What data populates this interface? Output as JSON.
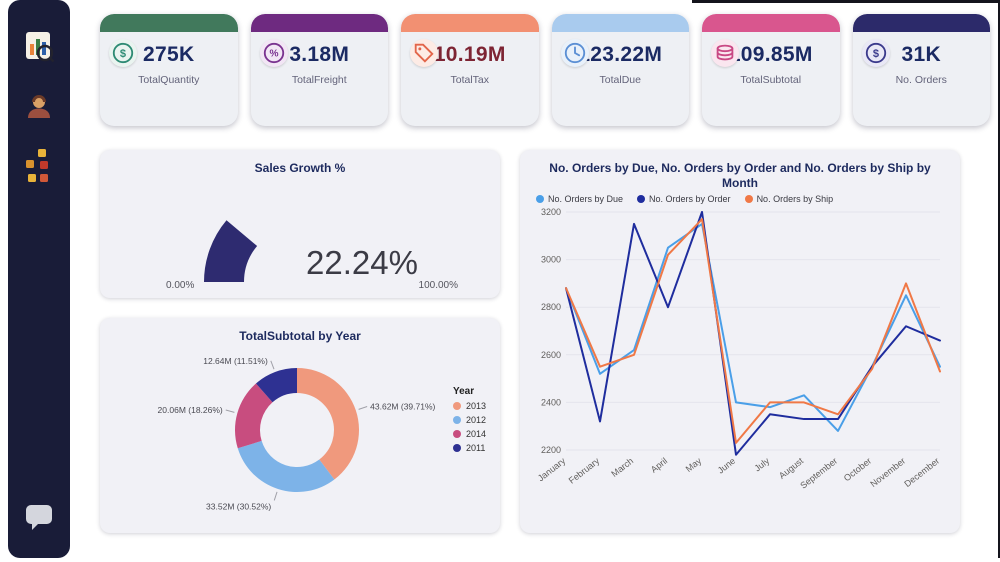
{
  "sidebar": {
    "icon_names": [
      "app-logo-icon",
      "user-profile-icon",
      "apps-grid-icon",
      "chat-bubble-icon"
    ]
  },
  "kpi_cards": [
    {
      "value": "275K",
      "label": "TotalQuantity",
      "accent": "#41795c",
      "icon": "dollar",
      "icon_color": "#2e8b74",
      "icon_bg": "#eaf4f0",
      "value_color": "#1b2a63"
    },
    {
      "value": "3.18M",
      "label": "TotalFreight",
      "accent": "#6e2a80",
      "icon": "percent",
      "icon_color": "#7a3390",
      "icon_bg": "#f2e6f5",
      "value_color": "#1b2a63"
    },
    {
      "value": "10.19M",
      "label": "TotalTax",
      "accent": "#f29072",
      "icon": "tag",
      "icon_color": "#e2654a",
      "icon_bg": "#fdebe5",
      "value_color": "#7d2433"
    },
    {
      "value": "123.22M",
      "label": "TotalDue",
      "accent": "#a9cbee",
      "icon": "clock",
      "icon_color": "#5b8fd4",
      "icon_bg": "#e9f1fa",
      "value_color": "#1b2a63"
    },
    {
      "value": "109.85M",
      "label": "TotalSubtotal",
      "accent": "#d9568e",
      "icon": "coins",
      "icon_color": "#c94884",
      "icon_bg": "#fae6ef",
      "value_color": "#1b2a63"
    },
    {
      "value": "31K",
      "label": "No. Orders",
      "accent": "#2c2a6a",
      "icon": "dollar",
      "icon_color": "#3b3a8c",
      "icon_bg": "#e9e8f6",
      "value_color": "#1b2a63"
    }
  ],
  "chart_data": [
    {
      "id": "gauge",
      "type": "gauge",
      "title": "Sales Growth %",
      "value": 22.24,
      "min": 0,
      "max": 100,
      "value_label": "22.24%",
      "min_label": "0.00%",
      "max_label": "100.00%",
      "color": "#2e2b70"
    },
    {
      "id": "donut",
      "type": "pie",
      "title": "TotalSubtotal by Year",
      "legend_title": "Year",
      "legend_position": "right",
      "slices": [
        {
          "year": "2013",
          "label": "43.62M (39.71%)",
          "value": 39.71,
          "color": "#f0997d"
        },
        {
          "year": "2012",
          "label": "33.52M (30.52%)",
          "value": 30.52,
          "color": "#7db3e8"
        },
        {
          "year": "2014",
          "label": "20.06M (18.26%)",
          "value": 18.26,
          "color": "#c84d7f"
        },
        {
          "year": "2011",
          "label": "12.64M (11.51%)",
          "value": 11.51,
          "color": "#2e3192"
        }
      ]
    },
    {
      "id": "orders-by-month",
      "type": "line",
      "title": "No. Orders by Due, No. Orders by Order and No. Orders by Ship by Month",
      "x": [
        "January",
        "February",
        "March",
        "April",
        "May",
        "June",
        "July",
        "August",
        "September",
        "October",
        "November",
        "December"
      ],
      "ylim": [
        2200,
        3200
      ],
      "yticks": [
        2200,
        2400,
        2600,
        2800,
        3000,
        3200
      ],
      "grid": true,
      "legend_position": "top",
      "series": [
        {
          "name": "No. Orders by Due",
          "color": "#4a9fe8",
          "values": [
            2880,
            2520,
            2620,
            3050,
            3150,
            2400,
            2380,
            2430,
            2280,
            2550,
            2850,
            2550
          ]
        },
        {
          "name": "No. Orders by Order",
          "color": "#1f2d9e",
          "values": [
            2880,
            2320,
            3150,
            2800,
            3200,
            2180,
            2350,
            2330,
            2330,
            2550,
            2720,
            2660
          ]
        },
        {
          "name": "No. Orders by Ship",
          "color": "#f07846",
          "values": [
            2880,
            2550,
            2600,
            3020,
            3170,
            2230,
            2400,
            2400,
            2350,
            2540,
            2900,
            2530
          ]
        }
      ]
    }
  ]
}
